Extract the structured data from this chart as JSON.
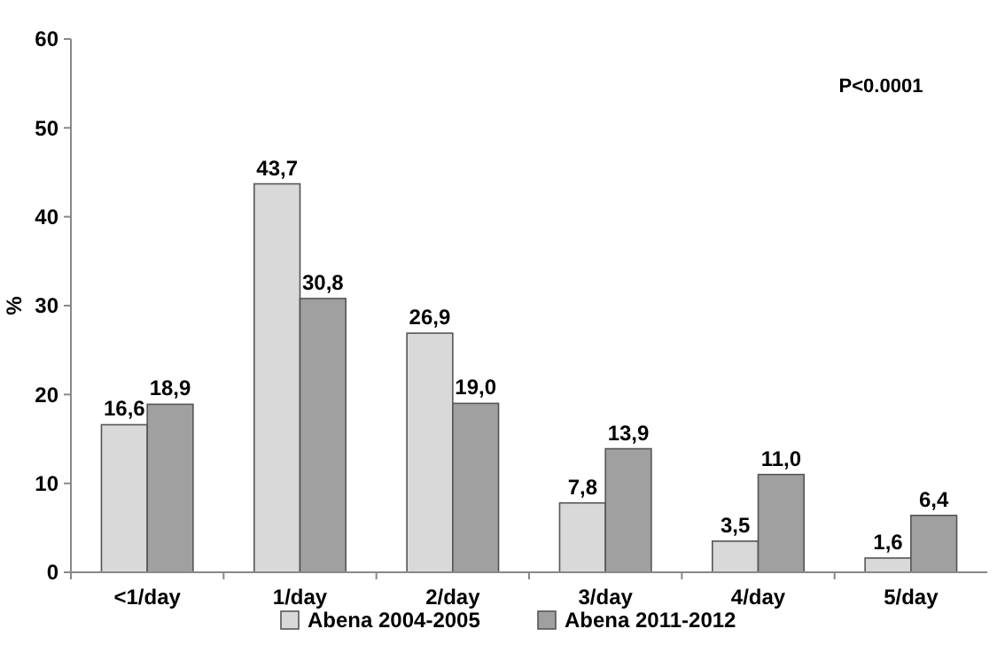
{
  "chart_data": {
    "type": "bar",
    "ylabel": "%",
    "categories": [
      "<1/day",
      "1/day",
      "2/day",
      "3/day",
      "4/day",
      "5/day"
    ],
    "series": [
      {
        "name": "Abena 2004-2005",
        "color": "#d9d9d9",
        "values": [
          16.6,
          43.7,
          26.9,
          7.8,
          3.5,
          1.6
        ],
        "value_labels": [
          "16,6",
          "43,7",
          "26,9",
          "7,8",
          "3,5",
          "1,6"
        ]
      },
      {
        "name": "Abena 2011-2012",
        "color": "#a0a0a0",
        "values": [
          18.9,
          30.8,
          19.0,
          13.9,
          11.0,
          6.4
        ],
        "value_labels": [
          "18,9",
          "30,8",
          "19,0",
          "13,9",
          "11,0",
          "6,4"
        ]
      }
    ],
    "ylim": [
      0,
      60
    ],
    "yticks": [
      0,
      10,
      20,
      30,
      40,
      50,
      60
    ],
    "grid": false,
    "legend": "bottom",
    "annotations": [
      "P<0.0001"
    ]
  }
}
